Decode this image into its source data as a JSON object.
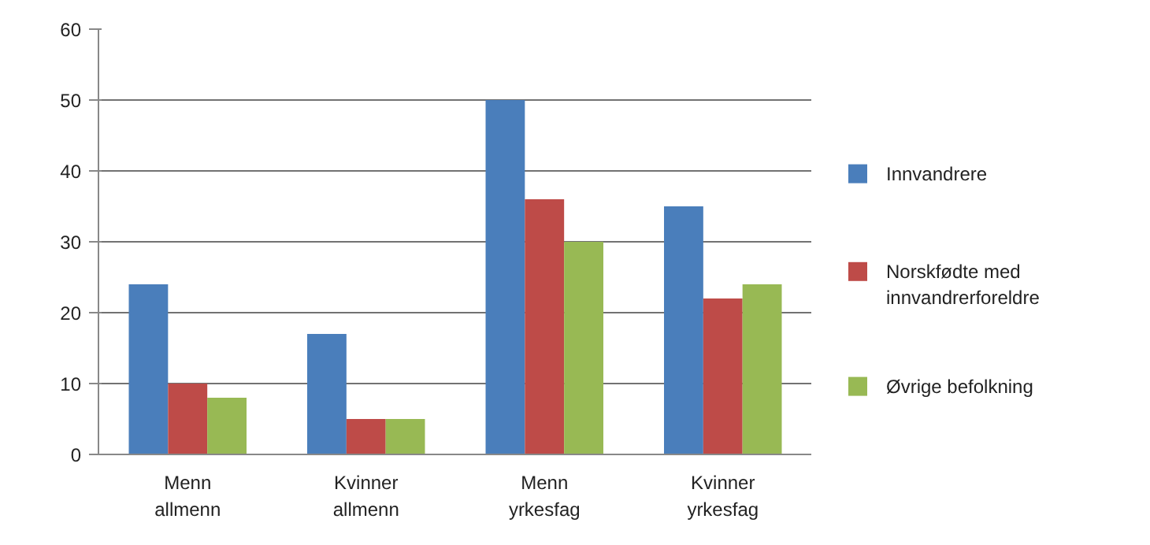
{
  "chart_data": {
    "type": "bar",
    "categories": [
      "Menn allmenn",
      "Kvinner allmenn",
      "Menn yrkesfag",
      "Kvinner yrkesfag"
    ],
    "series": [
      {
        "name": "Innvandrere",
        "color": "#4a7ebb",
        "values": [
          24,
          17,
          50,
          35
        ]
      },
      {
        "name": "Norskfødte med innvandrerforeldre",
        "color": "#be4b48",
        "values": [
          10,
          5,
          36,
          22
        ]
      },
      {
        "name": "Øvrige befolkning",
        "color": "#98b954",
        "values": [
          8,
          5,
          30,
          24
        ]
      }
    ],
    "ylim": [
      0,
      60
    ],
    "yticks": [
      0,
      10,
      20,
      30,
      40,
      50,
      60
    ],
    "grid": "y",
    "legend": "right"
  }
}
